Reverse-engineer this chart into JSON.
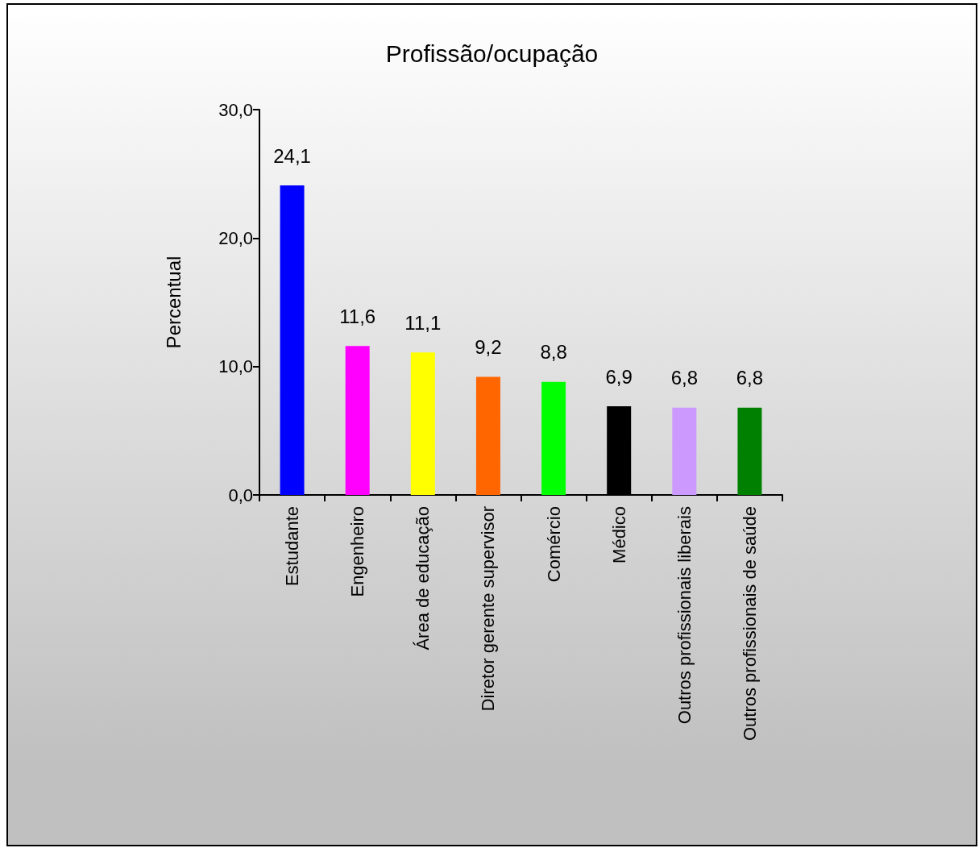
{
  "chart_data": {
    "type": "bar",
    "title": "Profissão/ocupação",
    "ylabel": "Percentual",
    "categories": [
      "Estudante",
      "Engenheiro",
      "Área de educação",
      "Diretor gerente supervisor",
      "Comércio",
      "Médico",
      "Outros profissionais liberais",
      "Outros profissionais de saúde"
    ],
    "values": [
      24.1,
      11.6,
      11.1,
      9.2,
      8.8,
      6.9,
      6.8,
      6.8
    ],
    "colors": [
      "#0000ff",
      "#ff00ff",
      "#ffff00",
      "#ff6600",
      "#00ff00",
      "#000000",
      "#cc99ff",
      "#008000"
    ],
    "value_labels": [
      "24,1",
      "11,6",
      "11,1",
      "9,2",
      "8,8",
      "6,9",
      "6,8",
      "6,8"
    ],
    "ylim": [
      0,
      30
    ],
    "yticks": [
      {
        "value": 0,
        "label": "0,0"
      },
      {
        "value": 10,
        "label": "10,0"
      },
      {
        "value": 20,
        "label": "20,0"
      },
      {
        "value": 30,
        "label": "30,0"
      }
    ],
    "grid": false
  }
}
